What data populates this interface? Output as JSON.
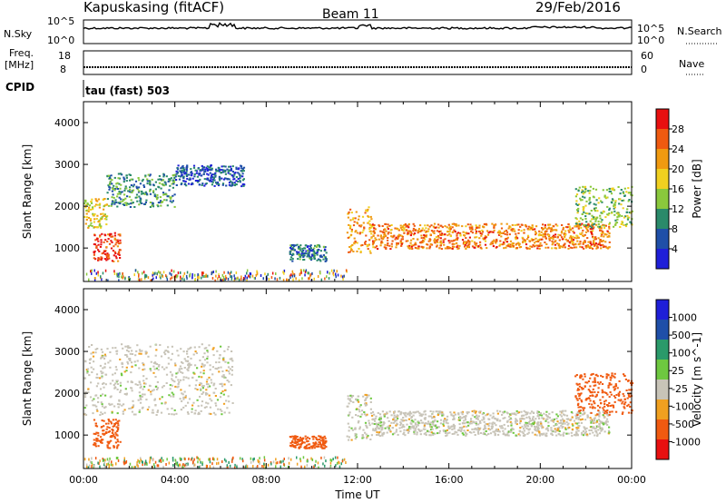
{
  "header": {
    "station": "Kapuskasing (fitACF)",
    "beam": "Beam 11",
    "date": "29/Feb/2016"
  },
  "noise_panel": {
    "left_label": "N.Sky",
    "right_label": "N.Search",
    "left_ticks": [
      "10^5",
      "10^0"
    ],
    "right_ticks": [
      "10^5",
      "10^0"
    ]
  },
  "freq_panel": {
    "left_label_1": "Freq.",
    "left_label_2": "[MHz]",
    "left_ticks": [
      "18",
      "8"
    ],
    "right_label": "Nave",
    "right_ticks": [
      "60",
      "0"
    ]
  },
  "cpid": {
    "label": "CPID",
    "mode": "tau (fast) 503"
  },
  "colors": {
    "power": [
      "#1f1fd8",
      "#1f4fa8",
      "#2a8a6a",
      "#8ac83c",
      "#f0d020",
      "#f09a10",
      "#ef5a10",
      "#e81010"
    ],
    "velocity": [
      "#e81010",
      "#f05a10",
      "#f0a020",
      "#c8c4b8",
      "#6ec840",
      "#2a9a6a",
      "#1f4fa8",
      "#1f1fd8"
    ],
    "velocity_ground": "#c8c4b8"
  },
  "chart_data": [
    {
      "type": "heatmap",
      "title": "Power",
      "xlabel": "",
      "ylabel": "Slant Range [km]",
      "y_ticks": [
        "1000",
        "2000",
        "3000",
        "4000"
      ],
      "ylim": [
        200,
        4500
      ],
      "xlim": [
        0,
        24
      ],
      "colorbar": {
        "label": "Power [dB]",
        "tick_labels": [
          "4",
          "8",
          "12",
          "16",
          "20",
          "24",
          "28"
        ],
        "range": [
          0,
          32
        ]
      },
      "regions": [
        {
          "t": [
            0.0,
            1.0
          ],
          "range_km": [
            1500,
            2200
          ],
          "level": 18
        },
        {
          "t": [
            0.4,
            1.6
          ],
          "range_km": [
            700,
            1400
          ],
          "level": 28
        },
        {
          "t": [
            1.0,
            4.0
          ],
          "range_km": [
            2000,
            2800
          ],
          "level": 10
        },
        {
          "t": [
            4.0,
            7.0
          ],
          "range_km": [
            2500,
            3000
          ],
          "level": 6
        },
        {
          "t": [
            9.0,
            10.6
          ],
          "range_km": [
            700,
            1100
          ],
          "level": 8
        },
        {
          "t": [
            11.5,
            12.6
          ],
          "range_km": [
            900,
            2000
          ],
          "level": 22
        },
        {
          "t": [
            12.6,
            23.0
          ],
          "range_km": [
            1000,
            1600
          ],
          "level": 24
        },
        {
          "t": [
            21.5,
            24.0
          ],
          "range_km": [
            1500,
            2500
          ],
          "level": 14
        }
      ]
    },
    {
      "type": "heatmap",
      "title": "Velocity",
      "xlabel": "Time UT",
      "ylabel": "Slant Range [km]",
      "y_ticks": [
        "1000",
        "2000",
        "3000",
        "4000"
      ],
      "ylim": [
        200,
        4500
      ],
      "x_ticks": [
        "00:00",
        "04:00",
        "08:00",
        "12:00",
        "16:00",
        "20:00",
        "00:00"
      ],
      "xlim": [
        0,
        24
      ],
      "colorbar": {
        "label": "Velocity [m s^-1]",
        "tick_labels": [
          "1000",
          "500",
          "100",
          "25",
          "-25",
          "-100",
          "-500",
          "-1000"
        ],
        "range": [
          -1000,
          1000
        ]
      },
      "regions": [
        {
          "t": [
            0.0,
            6.5
          ],
          "range_km": [
            1500,
            3200
          ],
          "velocity": 0
        },
        {
          "t": [
            0.4,
            1.6
          ],
          "range_km": [
            700,
            1400
          ],
          "velocity": -300
        },
        {
          "t": [
            11.5,
            12.6
          ],
          "range_km": [
            900,
            2000
          ],
          "velocity": 0
        },
        {
          "t": [
            12.6,
            23.0
          ],
          "range_km": [
            1000,
            1600
          ],
          "velocity": 0
        },
        {
          "t": [
            21.5,
            24.0
          ],
          "range_km": [
            1500,
            2500
          ],
          "velocity": -150
        },
        {
          "t": [
            9.0,
            10.6
          ],
          "range_km": [
            700,
            1000
          ],
          "velocity": -200
        }
      ]
    }
  ]
}
